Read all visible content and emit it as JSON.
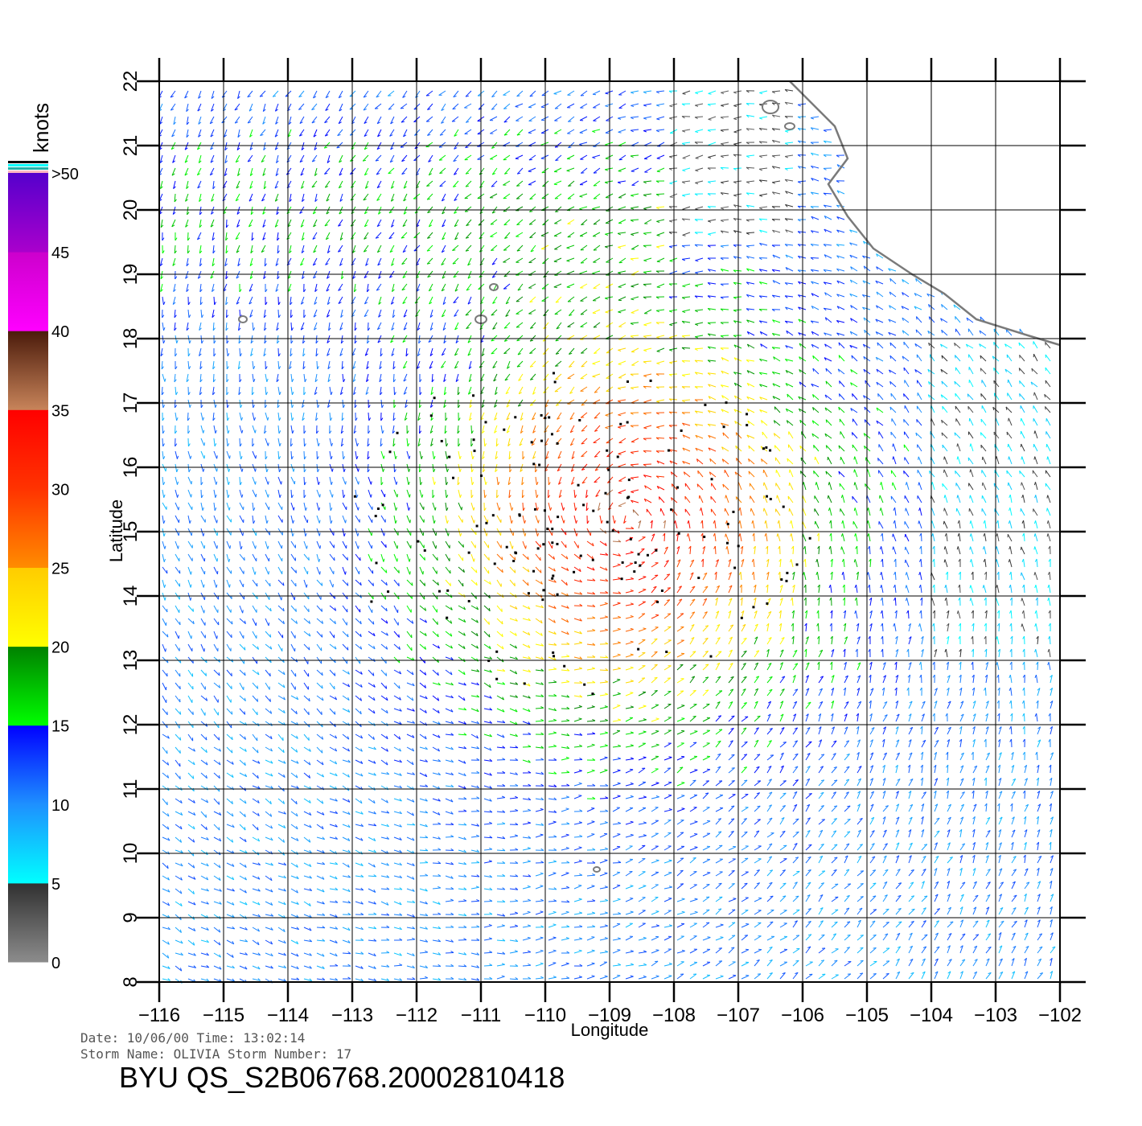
{
  "map": {
    "xlabel": "Longitude",
    "ylabel": "Latitude",
    "lon_range": [
      -116,
      -102
    ],
    "lat_range": [
      8,
      22
    ],
    "x_ticks": [
      -116,
      -115,
      -114,
      -113,
      -112,
      -111,
      -110,
      -109,
      -108,
      -107,
      -106,
      -105,
      -104,
      -103,
      -102
    ],
    "y_ticks": [
      8,
      9,
      10,
      11,
      12,
      13,
      14,
      15,
      16,
      17,
      18,
      19,
      20,
      21,
      22
    ],
    "grid": true,
    "storm_center_approx": [
      -108.7,
      15.2
    ]
  },
  "colorbar": {
    "title": "knots",
    "bands": [
      {
        "from": 0,
        "to": 5,
        "top": "#303030",
        "bottom": "#8c8c8c"
      },
      {
        "from": 5,
        "to": 10,
        "top": "#1e90ff",
        "bottom": "#00ffff"
      },
      {
        "from": 10,
        "to": 15,
        "top": "#0000ff",
        "bottom": "#1e90ff"
      },
      {
        "from": 15,
        "to": 20,
        "top": "#008000",
        "bottom": "#00ff00"
      },
      {
        "from": 20,
        "to": 25,
        "top": "#ffcc00",
        "bottom": "#ffff00"
      },
      {
        "from": 25,
        "to": 30,
        "top": "#ff3300",
        "bottom": "#ff8c00"
      },
      {
        "from": 30,
        "to": 35,
        "top": "#ff0000",
        "bottom": "#ff3300"
      },
      {
        "from": 35,
        "to": 40,
        "top": "#4a1a0a",
        "bottom": "#c8845a"
      },
      {
        "from": 40,
        "to": 45,
        "top": "#cc00cc",
        "bottom": "#ff00ff"
      },
      {
        "from": 45,
        "to": 50,
        "top": "#5500cc",
        "bottom": "#aa00cc"
      }
    ],
    "labels": [
      {
        "value": 0,
        "text": "0"
      },
      {
        "value": 5,
        "text": "5"
      },
      {
        "value": 10,
        "text": "10"
      },
      {
        "value": 15,
        "text": "15"
      },
      {
        "value": 20,
        "text": "20"
      },
      {
        "value": 25,
        "text": "25"
      },
      {
        "value": 30,
        "text": "30"
      },
      {
        "value": 35,
        "text": "35"
      },
      {
        "value": 40,
        "text": "40"
      },
      {
        "value": 45,
        "text": "45"
      },
      {
        "value": 50,
        "text": ">50"
      }
    ],
    "top_stripes": [
      "#ffb6c1",
      "#20b2aa",
      "#00ffff",
      "#000000"
    ]
  },
  "footer": {
    "line1": "Date: 10/06/00   Time: 13:02:14",
    "line2": "Storm Name: OLIVIA   Storm Number: 17",
    "product_id": "BYU QS_S2B06768.20002810418"
  },
  "colors": {
    "grid": "#000000",
    "coast": "#7a7a7a"
  }
}
